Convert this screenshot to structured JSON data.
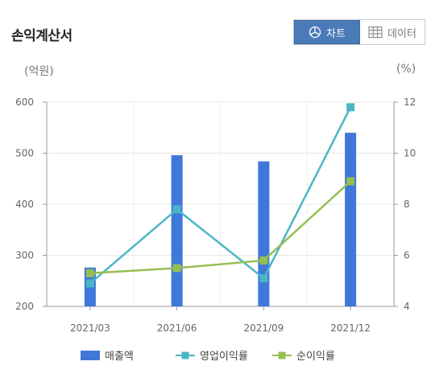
{
  "header": {
    "title": "손익계산서",
    "chart_tab": "차트",
    "data_tab": "데이터"
  },
  "units": {
    "left": "(억원)",
    "right": "(%)"
  },
  "colors": {
    "bar": "#3f78d8",
    "operating": "#4ab5c7",
    "net": "#96bf52",
    "active_tab": "#4a7ab8"
  },
  "chart_data": {
    "type": "bar",
    "categories": [
      "2021/03",
      "2021/06",
      "2021/09",
      "2021/12"
    ],
    "y_left": {
      "ticks": [
        "600",
        "500",
        "400",
        "300",
        "200"
      ],
      "min": 200,
      "max": 600
    },
    "y_right": {
      "ticks": [
        "12",
        "10",
        "8",
        "6",
        "4"
      ],
      "min": 4,
      "max": 12
    },
    "series": [
      {
        "name": "매출액",
        "type": "bar",
        "axis": "left",
        "values": [
          276,
          496,
          484,
          540
        ]
      },
      {
        "name": "영업이익률",
        "type": "line",
        "axis": "right",
        "values": [
          4.9,
          7.8,
          5.1,
          11.8
        ]
      },
      {
        "name": "순이익률",
        "type": "line",
        "axis": "right",
        "values": [
          5.3,
          5.5,
          5.8,
          8.9
        ]
      }
    ]
  }
}
